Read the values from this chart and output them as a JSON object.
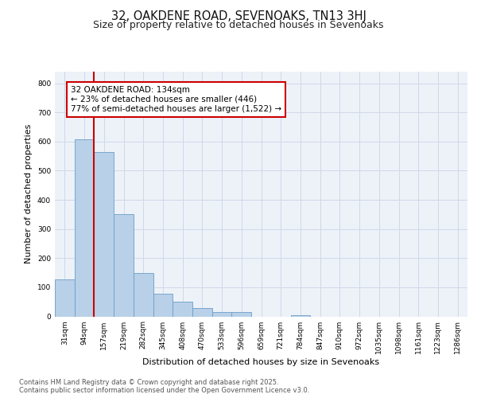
{
  "title1": "32, OAKDENE ROAD, SEVENOAKS, TN13 3HJ",
  "title2": "Size of property relative to detached houses in Sevenoaks",
  "xlabel": "Distribution of detached houses by size in Sevenoaks",
  "ylabel": "Number of detached properties",
  "bin_labels": [
    "31sqm",
    "94sqm",
    "157sqm",
    "219sqm",
    "282sqm",
    "345sqm",
    "408sqm",
    "470sqm",
    "533sqm",
    "596sqm",
    "659sqm",
    "721sqm",
    "784sqm",
    "847sqm",
    "910sqm",
    "972sqm",
    "1035sqm",
    "1098sqm",
    "1161sqm",
    "1223sqm",
    "1286sqm"
  ],
  "bar_heights": [
    128,
    608,
    565,
    350,
    150,
    78,
    50,
    30,
    15,
    15,
    0,
    0,
    5,
    0,
    0,
    0,
    0,
    0,
    0,
    0,
    0
  ],
  "bar_color": "#b8d0e8",
  "bar_edge_color": "#6b9ec8",
  "vline_color": "#cc0000",
  "annotation_text": "32 OAKDENE ROAD: 134sqm\n← 23% of detached houses are smaller (446)\n77% of semi-detached houses are larger (1,522) →",
  "annotation_box_color": "#ffffff",
  "annotation_box_edge": "#cc0000",
  "ylim": [
    0,
    840
  ],
  "yticks": [
    0,
    100,
    200,
    300,
    400,
    500,
    600,
    700,
    800
  ],
  "grid_color": "#d0d8e8",
  "bg_color": "#edf2f9",
  "footer_text": "Contains HM Land Registry data © Crown copyright and database right 2025.\nContains public sector information licensed under the Open Government Licence v3.0.",
  "title_fontsize": 10.5,
  "subtitle_fontsize": 9,
  "axis_label_fontsize": 8,
  "tick_fontsize": 6.5,
  "annotation_fontsize": 7.5
}
